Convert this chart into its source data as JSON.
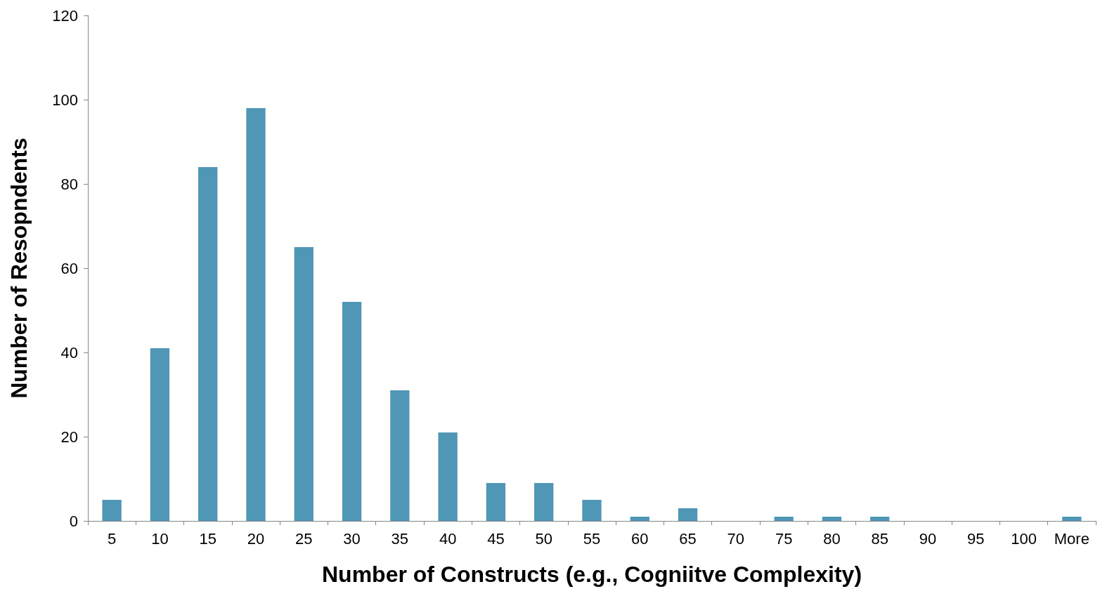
{
  "chart_data": {
    "type": "bar",
    "xlabel": "Number of Constructs (e.g., Cogniitve Complexity)",
    "ylabel": "Number of Resopndents",
    "categories": [
      "5",
      "10",
      "15",
      "20",
      "25",
      "30",
      "35",
      "40",
      "45",
      "50",
      "55",
      "60",
      "65",
      "70",
      "75",
      "80",
      "85",
      "90",
      "95",
      "100",
      "More"
    ],
    "values": [
      5,
      41,
      84,
      98,
      65,
      52,
      31,
      21,
      9,
      9,
      5,
      1,
      3,
      0,
      1,
      1,
      1,
      0,
      0,
      0,
      1
    ],
    "color": "#4f97b5",
    "ylim": [
      0,
      120
    ],
    "yticks": [
      0,
      20,
      40,
      60,
      80,
      100,
      120
    ],
    "grid": false
  }
}
